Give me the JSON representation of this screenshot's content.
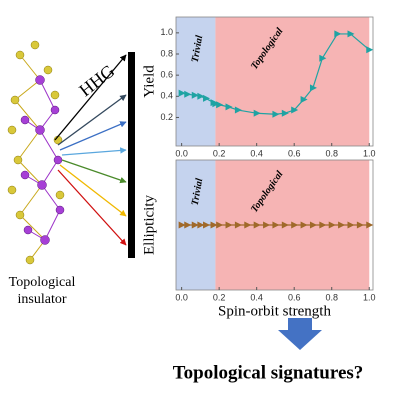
{
  "left_label": [
    "Topological",
    "insulator"
  ],
  "process_label": "HHG",
  "conclusion": "Topological signatures?",
  "chart_data": [
    {
      "type": "line",
      "y_label": "Yield",
      "color": "#1fa3a3",
      "regions": [
        {
          "name": "Trivial",
          "from": 0,
          "to": 0.18,
          "color": "#c5d3ee",
          "text_color": "#1c2b6b"
        },
        {
          "name": "Topological",
          "from": 0.18,
          "to": 1.0,
          "color": "#f6b4b4",
          "text_color": "#8b1a1a"
        }
      ],
      "x": [
        0,
        0.03,
        0.07,
        0.1,
        0.13,
        0.17,
        0.18,
        0.2,
        0.25,
        0.3,
        0.4,
        0.5,
        0.55,
        0.6,
        0.65,
        0.7,
        0.75,
        0.83,
        0.9,
        1.0
      ],
      "values": [
        0.43,
        0.42,
        0.41,
        0.4,
        0.38,
        0.34,
        0.33,
        0.32,
        0.3,
        0.27,
        0.24,
        0.23,
        0.24,
        0.27,
        0.37,
        0.48,
        0.76,
        0.99,
        0.99,
        0.84
      ],
      "xlim": [
        -0.03,
        1.02
      ],
      "ylim": [
        -0.07,
        1.15
      ],
      "xticks": [
        {
          "value": 0,
          "label": "0.0"
        },
        0.2,
        0.4,
        0.6,
        0.8,
        {
          "value": 1,
          "label": "1.0"
        }
      ],
      "yticks": [
        0.2,
        0.4,
        0.6,
        0.8,
        {
          "value": 1,
          "label": "1.0"
        }
      ]
    },
    {
      "type": "line",
      "y_label": "Ellipticity",
      "x_label": "Spin-orbit strength",
      "color": "#a0692a",
      "regions": [
        {
          "name": "Trivial",
          "from": 0,
          "to": 0.18,
          "color": "#c5d3ee",
          "text_color": "#1c2b6b"
        },
        {
          "name": "Topological",
          "from": 0.18,
          "to": 1.0,
          "color": "#f6b4b4",
          "text_color": "#8b1a1a"
        }
      ],
      "x": [
        0,
        0.03,
        0.07,
        0.1,
        0.13,
        0.17,
        0.2,
        0.25,
        0.3,
        0.35,
        0.4,
        0.45,
        0.5,
        0.55,
        0.6,
        0.65,
        0.7,
        0.75,
        0.8,
        0.85,
        0.9,
        0.95,
        1.0
      ],
      "values": [
        0,
        0,
        0,
        0,
        0,
        0,
        0,
        0,
        0,
        0,
        0,
        0,
        0,
        0,
        0,
        0,
        0,
        0,
        0,
        0,
        0,
        0,
        0
      ],
      "xlim": [
        -0.03,
        1.02
      ],
      "ylim": [
        -1,
        1
      ],
      "xticks": [
        {
          "value": 0,
          "label": "0.0"
        },
        0.2,
        0.4,
        0.6,
        0.8,
        {
          "value": 1,
          "label": "1.0"
        }
      ]
    }
  ]
}
